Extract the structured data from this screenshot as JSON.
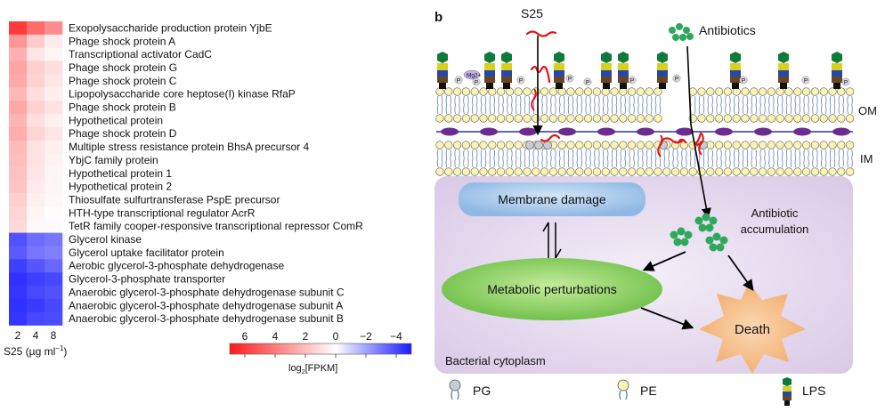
{
  "panel_b": {
    "label": "b",
    "s25": "S25",
    "antibiotics": "Antibiotics",
    "mg": "Mg",
    "mg_sup": "2+",
    "p": "P",
    "om": "OM",
    "im": "IM",
    "membrane_damage": "Membrane damage",
    "antibiotic": "Antibiotic",
    "accumulation": "accumulation",
    "metabolic": "Metabolic perturbations",
    "death": "Death",
    "cytoplasm": "Bacterial cytoplasm",
    "legend": {
      "pg": "PG",
      "pe": "PE",
      "lps": "LPS"
    }
  },
  "heatmap": {
    "columns": [
      "2",
      "4",
      "8"
    ],
    "axis_label_prefix": "S25 (µg ml",
    "axis_label_sup": "−1",
    "axis_label_suffix": ")",
    "genes": [
      "Exopolysaccharide production protein YjbE",
      "Phage shock protein A",
      "Transcriptional activator CadC",
      "Phage shock protein G",
      "Phage shock protein C",
      "Lipopolysaccharide core heptose(I) kinase RfaP",
      "Phage shock protein B",
      "Hypothetical protein",
      "Phage shock protein D",
      "Multiple stress resistance protein BhsA precursor 4",
      "YbjC family protein",
      "Hypothetical protein 1",
      "Hypothetical protein 2",
      "Thiosulfate sulfurtransferase PspE precursor",
      "HTH-type transcriptional regulator AcrR",
      "TetR family cooper-responsive transcriptional repressor ComR",
      "Glycerol kinase",
      "Glycerol uptake facilitator protein",
      "Aerobic glycerol-3-phosphate dehydrogenase",
      "Glycerol-3-phosphate transporter",
      "Anaerobic glycerol-3-phosphate dehydrogenase subunit C",
      "Anaerobic glycerol-3-phosphate dehydrogenase subunit A",
      "Anaerobic glycerol-3-phosphate dehydrogenase subunit B"
    ],
    "values": [
      [
        6.0,
        4.5,
        3.5
      ],
      [
        3.2,
        1.6,
        0.6
      ],
      [
        2.4,
        0.8,
        0.3
      ],
      [
        2.8,
        1.5,
        1.0
      ],
      [
        2.6,
        1.4,
        0.8
      ],
      [
        2.2,
        1.0,
        0.5
      ],
      [
        2.7,
        1.4,
        0.9
      ],
      [
        2.3,
        1.0,
        0.5
      ],
      [
        2.5,
        1.3,
        0.8
      ],
      [
        2.1,
        0.9,
        0.5
      ],
      [
        2.0,
        0.9,
        0.4
      ],
      [
        1.9,
        0.8,
        0.3
      ],
      [
        1.8,
        0.6,
        0.3
      ],
      [
        1.5,
        0.5,
        0.2
      ],
      [
        1.3,
        0.3,
        0.1
      ],
      [
        1.2,
        0.2,
        -0.1
      ],
      [
        -3.8,
        -3.2,
        -3.0
      ],
      [
        -3.6,
        -3.0,
        -2.8
      ],
      [
        -4.2,
        -3.7,
        -3.3
      ],
      [
        -4.5,
        -4.2,
        -4.0
      ],
      [
        -4.4,
        -4.0,
        -3.8
      ],
      [
        -4.5,
        -4.3,
        -4.0
      ],
      [
        -4.4,
        -4.0,
        -3.9
      ]
    ],
    "colorbar": {
      "ticks": [
        "6",
        "4",
        "2",
        "0",
        "−2",
        "−4"
      ],
      "label_prefix": "log",
      "label_sub": "2",
      "label_suffix": "[FPKM]",
      "min": -5,
      "max": 7
    }
  },
  "colors": {
    "high": "#ff1a1a",
    "mid": "#ffffff",
    "low": "#1a1aff",
    "cytoplasm": "#e6dcef",
    "membrane_damage": "#a9c9ea",
    "metabolic": "#8ed16a",
    "death": "#f6c08f",
    "antibiotic_dot": "#2ea85a",
    "peptide": "#e01414"
  }
}
